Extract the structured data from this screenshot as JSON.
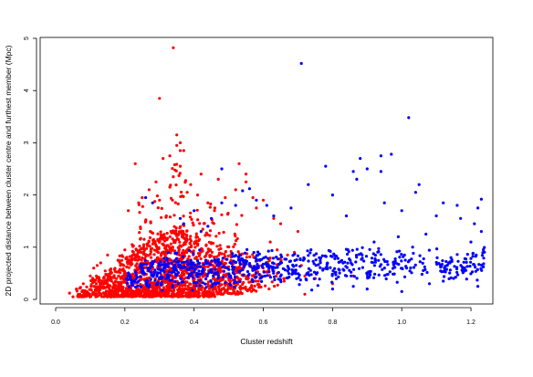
{
  "chart_data": {
    "type": "scatter",
    "title": "",
    "xlabel": "Cluster redshift",
    "ylabel": "2D projected distance between cluster centre and furthest member (Mpc)",
    "xlim": [
      0.0,
      1.25
    ],
    "ylim": [
      0,
      5
    ],
    "x_ticks": [
      0.0,
      0.2,
      0.4,
      0.6,
      0.8,
      1.0,
      1.2
    ],
    "x_tick_labels": [
      "0.0",
      "0.2",
      "0.4",
      "0.6",
      "0.8",
      "1.0",
      "1.2"
    ],
    "y_ticks": [
      0,
      1,
      2,
      3,
      4,
      5
    ],
    "y_tick_labels": [
      "0",
      "1",
      "2",
      "3",
      "4",
      "5"
    ],
    "grid": false,
    "legend": "none",
    "series": [
      {
        "color": "#ff0000",
        "points": [
          [
            0.34,
            4.82
          ],
          [
            0.3,
            3.85
          ],
          [
            0.36,
            3.0
          ],
          [
            0.35,
            2.95
          ],
          [
            0.37,
            2.85
          ],
          [
            0.23,
            2.6
          ],
          [
            0.31,
            2.7
          ],
          [
            0.33,
            2.75
          ],
          [
            0.36,
            2.55
          ],
          [
            0.53,
            2.6
          ],
          [
            0.55,
            2.4
          ],
          [
            0.52,
            2.1
          ],
          [
            0.49,
            1.95
          ],
          [
            0.47,
            2.3
          ],
          [
            0.29,
            2.25
          ],
          [
            0.25,
            1.95
          ],
          [
            0.41,
            2.0
          ],
          [
            0.44,
            1.85
          ],
          [
            0.57,
            1.95
          ],
          [
            0.58,
            1.75
          ],
          [
            0.6,
            1.9
          ],
          [
            0.63,
            1.55
          ],
          [
            0.65,
            1.45
          ],
          [
            0.7,
            1.3
          ],
          [
            0.55,
            2.25
          ],
          [
            0.27,
            2.1
          ],
          [
            0.39,
            2.2
          ],
          [
            0.42,
            2.4
          ],
          [
            0.46,
            1.75
          ],
          [
            0.32,
            1.6
          ],
          [
            0.21,
            1.7
          ],
          [
            0.24,
            1.85
          ],
          [
            0.26,
            1.5
          ],
          [
            0.2,
            0.95
          ],
          [
            0.12,
            0.65
          ],
          [
            0.11,
            0.6
          ],
          [
            0.13,
            0.7
          ],
          [
            0.15,
            0.85
          ],
          [
            0.18,
            0.75
          ],
          [
            0.1,
            0.45
          ],
          [
            0.08,
            0.3
          ],
          [
            0.06,
            0.2
          ],
          [
            0.04,
            0.12
          ],
          [
            0.05,
            0.05
          ],
          [
            0.09,
            0.15
          ],
          [
            0.07,
            0.1
          ],
          [
            0.14,
            0.4
          ],
          [
            0.16,
            0.5
          ],
          [
            0.69,
            0.55
          ],
          [
            0.72,
            0.45
          ],
          [
            0.75,
            0.4
          ],
          [
            0.67,
            0.85
          ],
          [
            0.62,
            1.1
          ],
          [
            0.64,
            0.95
          ],
          [
            0.72,
            0.1
          ],
          [
            0.69,
            0.9
          ],
          [
            0.66,
            0.35
          ],
          [
            0.71,
            0.65
          ],
          [
            0.8,
            0.3
          ],
          [
            0.86,
            0.45
          ],
          [
            0.35,
            3.15
          ],
          [
            0.36,
            2.85
          ],
          [
            0.33,
            2.15
          ],
          [
            0.38,
            2.05
          ],
          [
            0.3,
            1.9
          ],
          [
            0.34,
            2.35
          ]
        ]
      },
      {
        "color": "#0000ff",
        "points": [
          [
            0.71,
            4.52
          ],
          [
            1.02,
            3.48
          ],
          [
            0.56,
            2.12
          ],
          [
            0.54,
            2.08
          ],
          [
            0.88,
            2.7
          ],
          [
            0.94,
            2.75
          ],
          [
            0.97,
            2.78
          ],
          [
            0.9,
            2.5
          ],
          [
            0.86,
            2.45
          ],
          [
            0.78,
            2.55
          ],
          [
            0.94,
            2.45
          ],
          [
            1.05,
            2.2
          ],
          [
            0.87,
            2.3
          ],
          [
            0.48,
            2.5
          ],
          [
            0.73,
            2.2
          ],
          [
            1.23,
            1.92
          ],
          [
            1.22,
            1.75
          ],
          [
            1.12,
            1.85
          ],
          [
            1.16,
            1.8
          ],
          [
            1.04,
            2.05
          ],
          [
            0.95,
            1.85
          ],
          [
            1.0,
            1.7
          ],
          [
            0.8,
            2.0
          ],
          [
            0.84,
            1.6
          ],
          [
            0.61,
            1.8
          ],
          [
            0.63,
            1.6
          ],
          [
            0.68,
            1.75
          ],
          [
            0.58,
            1.9
          ],
          [
            0.52,
            1.8
          ],
          [
            0.48,
            1.85
          ],
          [
            0.26,
            1.95
          ],
          [
            0.28,
            1.85
          ],
          [
            0.45,
            1.55
          ],
          [
            0.4,
            1.7
          ],
          [
            0.37,
            1.45
          ],
          [
            1.17,
            1.55
          ],
          [
            1.21,
            1.45
          ],
          [
            1.1,
            1.6
          ],
          [
            1.07,
            1.25
          ],
          [
            0.99,
            1.2
          ],
          [
            1.23,
            1.3
          ],
          [
            1.2,
            1.1
          ],
          [
            0.42,
            1.3
          ],
          [
            0.44,
            1.4
          ],
          [
            0.36,
            1.55
          ],
          [
            0.92,
            1.1
          ],
          [
            1.12,
            0.35
          ],
          [
            1.08,
            0.3
          ],
          [
            1.22,
            0.25
          ],
          [
            1.0,
            0.15
          ],
          [
            0.9,
            0.2
          ],
          [
            0.86,
            0.25
          ],
          [
            0.8,
            0.2
          ],
          [
            0.74,
            0.18
          ]
        ],
        "bands": [
          [
            0.2,
            0.24,
            0.15,
            0.6,
            28
          ],
          [
            0.24,
            0.28,
            0.15,
            0.8,
            36
          ],
          [
            0.28,
            0.32,
            0.15,
            0.9,
            40
          ],
          [
            0.32,
            0.36,
            0.15,
            1.0,
            44
          ],
          [
            0.36,
            0.4,
            0.15,
            1.0,
            40
          ],
          [
            0.4,
            0.44,
            0.15,
            1.0,
            36
          ],
          [
            0.44,
            0.48,
            0.15,
            0.95,
            34
          ],
          [
            0.48,
            0.52,
            0.2,
            0.95,
            34
          ],
          [
            0.52,
            0.56,
            0.2,
            1.0,
            34
          ],
          [
            0.56,
            0.6,
            0.25,
            1.0,
            36
          ],
          [
            0.6,
            0.64,
            0.25,
            1.0,
            32
          ],
          [
            0.64,
            0.68,
            0.25,
            1.0,
            30
          ],
          [
            0.68,
            0.72,
            0.25,
            1.0,
            28
          ],
          [
            0.72,
            0.76,
            0.25,
            1.05,
            26
          ],
          [
            0.76,
            0.8,
            0.25,
            1.05,
            26
          ],
          [
            0.8,
            0.84,
            0.3,
            1.05,
            24
          ],
          [
            0.84,
            0.88,
            0.3,
            1.05,
            24
          ],
          [
            0.88,
            0.92,
            0.3,
            1.05,
            24
          ],
          [
            0.92,
            0.96,
            0.3,
            1.05,
            24
          ],
          [
            0.96,
            1.0,
            0.3,
            1.05,
            22
          ],
          [
            1.0,
            1.04,
            0.3,
            1.05,
            18
          ],
          [
            1.04,
            1.08,
            0.3,
            1.05,
            10
          ],
          [
            1.1,
            1.14,
            0.25,
            1.05,
            28
          ],
          [
            1.14,
            1.18,
            0.25,
            1.05,
            22
          ],
          [
            1.18,
            1.22,
            0.3,
            1.1,
            24
          ],
          [
            1.22,
            1.24,
            0.35,
            1.1,
            12
          ]
        ]
      }
    ],
    "red_bands": [
      [
        0.06,
        0.1,
        0.05,
        0.25,
        40
      ],
      [
        0.1,
        0.14,
        0.05,
        0.45,
        70
      ],
      [
        0.14,
        0.18,
        0.05,
        0.6,
        110
      ],
      [
        0.18,
        0.22,
        0.05,
        0.85,
        150
      ],
      [
        0.22,
        0.26,
        0.05,
        1.05,
        170
      ],
      [
        0.26,
        0.3,
        0.05,
        1.15,
        180
      ],
      [
        0.3,
        0.34,
        0.05,
        1.3,
        190
      ],
      [
        0.34,
        0.38,
        0.05,
        1.35,
        190
      ],
      [
        0.38,
        0.42,
        0.05,
        1.2,
        160
      ],
      [
        0.42,
        0.46,
        0.05,
        1.1,
        130
      ],
      [
        0.46,
        0.5,
        0.1,
        1.0,
        100
      ],
      [
        0.5,
        0.54,
        0.1,
        0.95,
        80
      ],
      [
        0.54,
        0.58,
        0.15,
        0.9,
        50
      ],
      [
        0.58,
        0.62,
        0.2,
        0.85,
        25
      ],
      [
        0.62,
        0.66,
        0.25,
        0.8,
        12
      ],
      [
        0.33,
        0.38,
        1.3,
        2.6,
        35
      ],
      [
        0.24,
        0.32,
        1.1,
        2.0,
        30
      ],
      [
        0.38,
        0.46,
        1.2,
        1.9,
        25
      ],
      [
        0.46,
        0.54,
        1.0,
        1.7,
        18
      ]
    ]
  }
}
